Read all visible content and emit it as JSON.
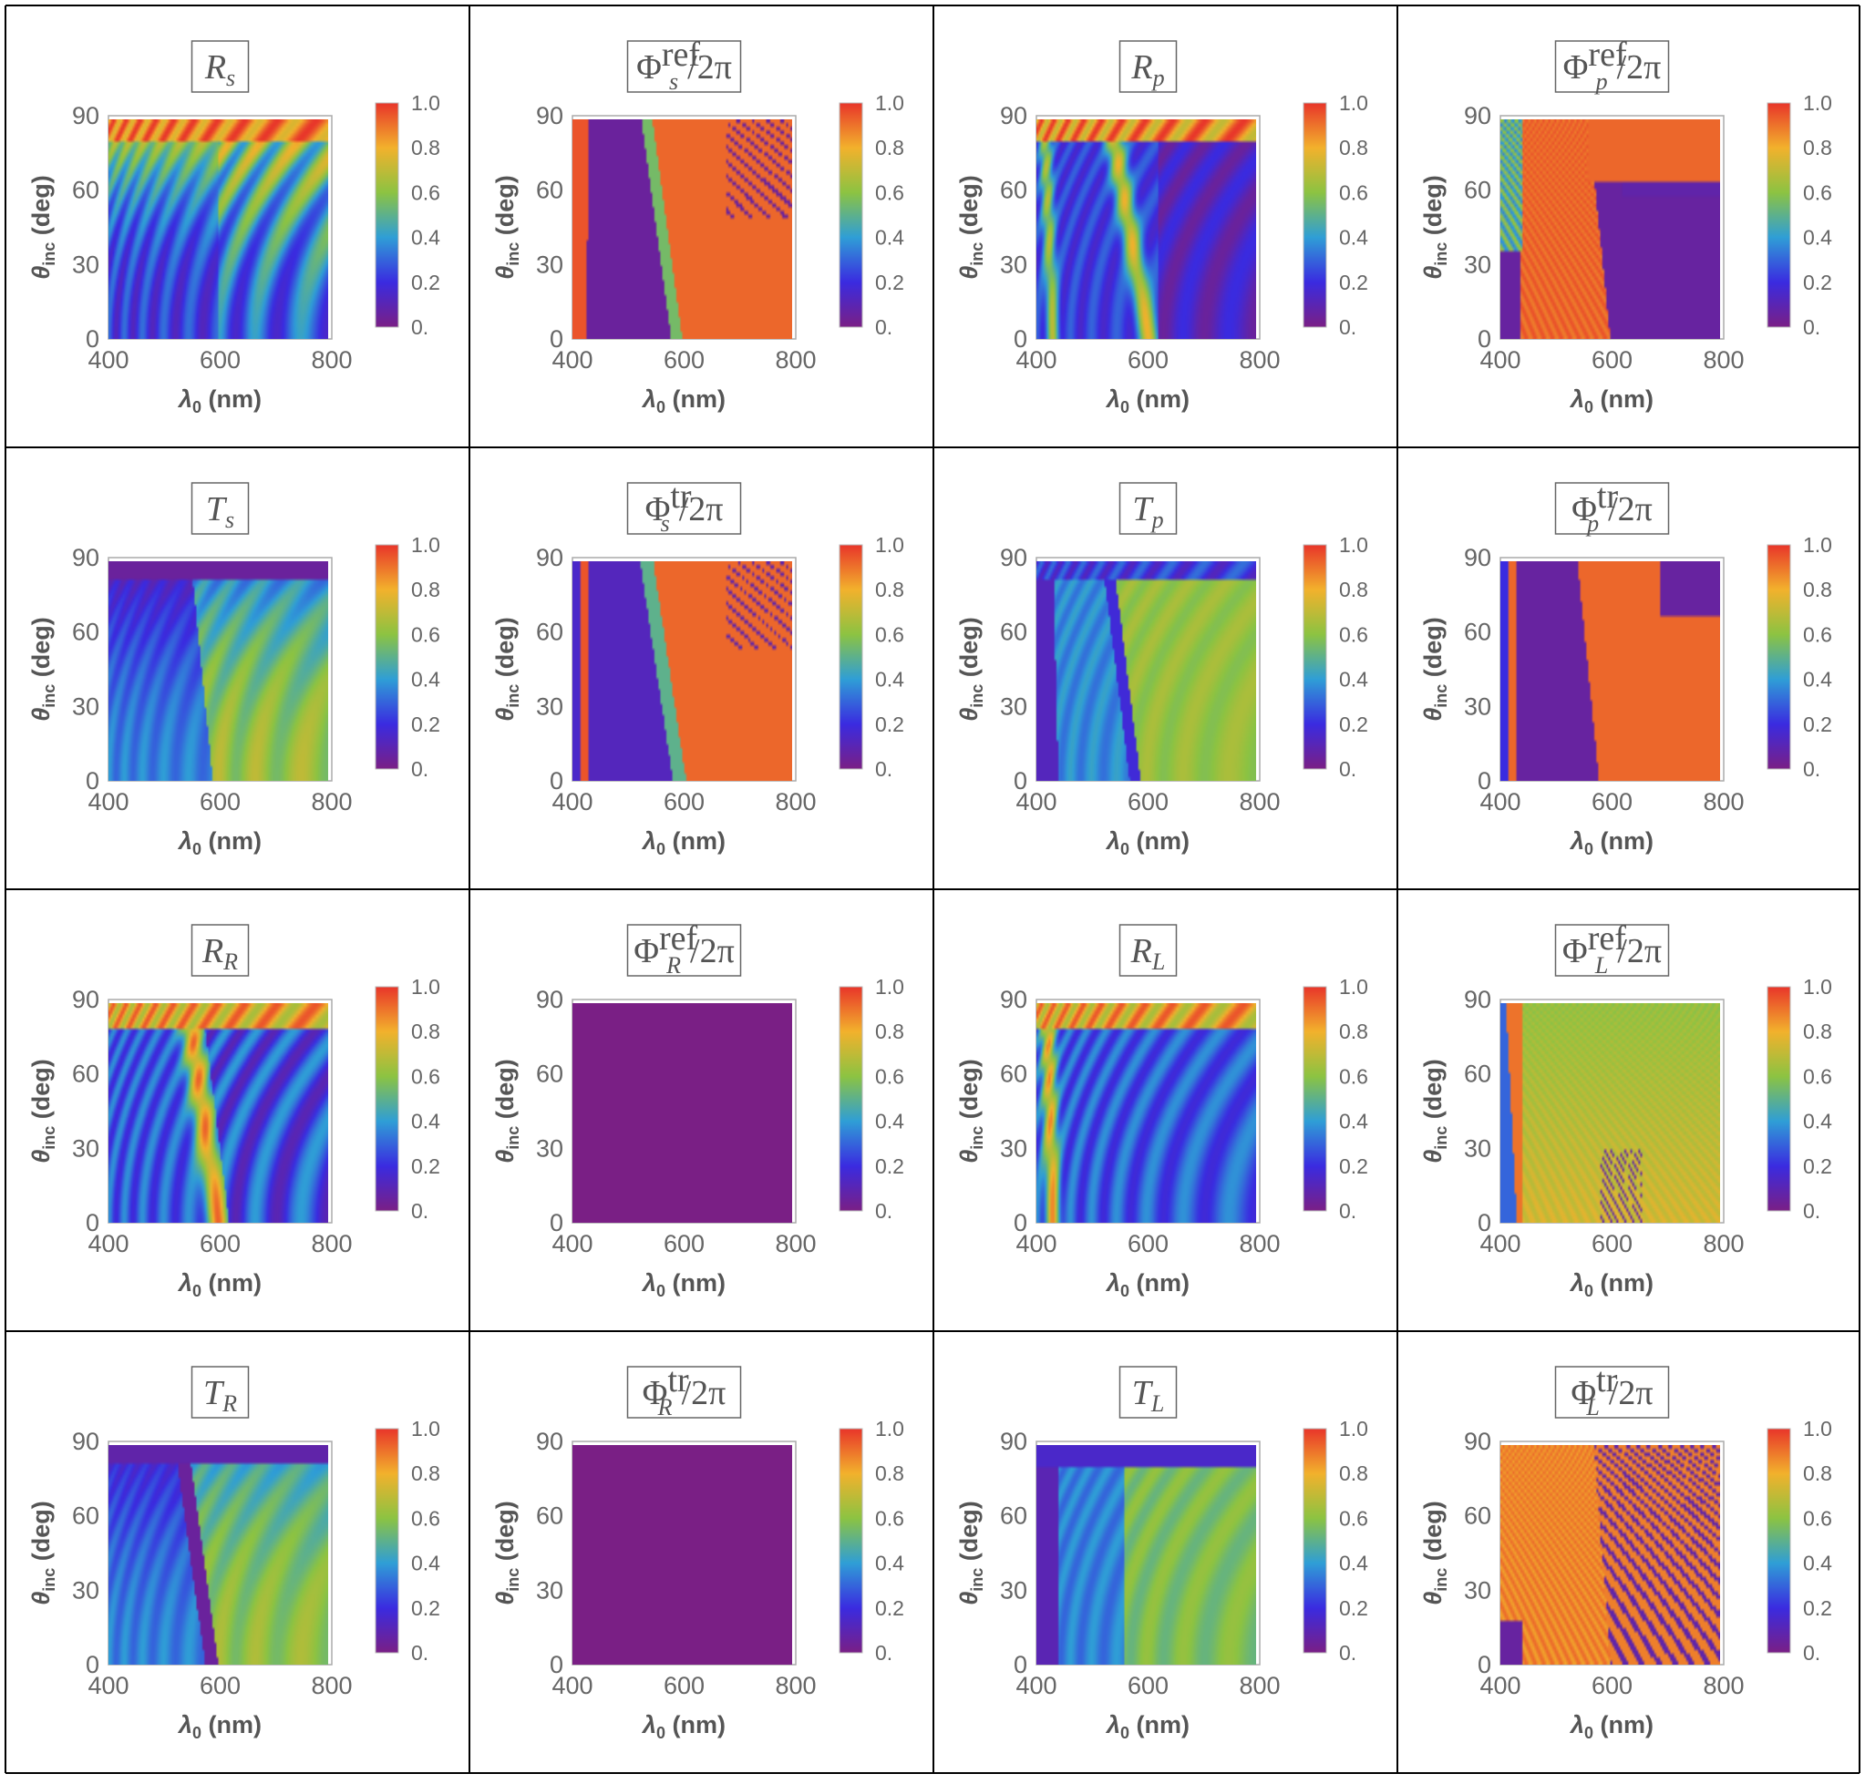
{
  "chart_data": [
    {
      "id": "Rs",
      "type": "heatmap",
      "title": {
        "main": "R",
        "sub": "s",
        "sup": "",
        "suffix": ""
      },
      "pattern": "R_s",
      "xlabel": {
        "main": "λ",
        "sub": "0",
        "rest": " (nm)"
      },
      "ylabel": {
        "main": "θ",
        "sub": "inc",
        "rest": " (deg)"
      },
      "xlim": [
        400,
        800
      ],
      "ylim": [
        0,
        90
      ],
      "xticks": [
        "400",
        "600",
        "800"
      ],
      "yticks": [
        "0",
        "30",
        "60",
        "90"
      ],
      "colorbar": {
        "range": [
          0,
          1
        ],
        "ticks": [
          "0.",
          "0.2",
          "0.4",
          "0.6",
          "0.8",
          "1.0"
        ]
      }
    },
    {
      "id": "PhiRefS",
      "type": "heatmap",
      "title": {
        "main": "Φ",
        "sub": "s",
        "sup": "ref",
        "suffix": "/2π"
      },
      "pattern": "phi_ref_s",
      "xlabel": {
        "main": "λ",
        "sub": "0",
        "rest": " (nm)"
      },
      "ylabel": {
        "main": "θ",
        "sub": "inc",
        "rest": " (deg)"
      },
      "xlim": [
        400,
        800
      ],
      "ylim": [
        0,
        90
      ],
      "xticks": [
        "400",
        "600",
        "800"
      ],
      "yticks": [
        "0",
        "30",
        "60",
        "90"
      ],
      "colorbar": {
        "range": [
          0,
          1
        ],
        "ticks": [
          "0.",
          "0.2",
          "0.4",
          "0.6",
          "0.8",
          "1.0"
        ]
      }
    },
    {
      "id": "Rp",
      "type": "heatmap",
      "title": {
        "main": "R",
        "sub": "p",
        "sup": "",
        "suffix": ""
      },
      "pattern": "R_p",
      "xlabel": {
        "main": "λ",
        "sub": "0",
        "rest": " (nm)"
      },
      "ylabel": {
        "main": "θ",
        "sub": "inc",
        "rest": " (deg)"
      },
      "xlim": [
        400,
        800
      ],
      "ylim": [
        0,
        90
      ],
      "xticks": [
        "400",
        "600",
        "800"
      ],
      "yticks": [
        "0",
        "30",
        "60",
        "90"
      ],
      "colorbar": {
        "range": [
          0,
          1
        ],
        "ticks": [
          "0.",
          "0.2",
          "0.4",
          "0.6",
          "0.8",
          "1.0"
        ]
      }
    },
    {
      "id": "PhiRefP",
      "type": "heatmap",
      "title": {
        "main": "Φ",
        "sub": "p",
        "sup": "ref",
        "suffix": "/2π"
      },
      "pattern": "phi_ref_p",
      "xlabel": {
        "main": "λ",
        "sub": "0",
        "rest": " (nm)"
      },
      "ylabel": {
        "main": "θ",
        "sub": "inc",
        "rest": " (deg)"
      },
      "xlim": [
        400,
        800
      ],
      "ylim": [
        0,
        90
      ],
      "xticks": [
        "400",
        "600",
        "800"
      ],
      "yticks": [
        "0",
        "30",
        "60",
        "90"
      ],
      "colorbar": {
        "range": [
          0,
          1
        ],
        "ticks": [
          "0.",
          "0.2",
          "0.4",
          "0.6",
          "0.8",
          "1.0"
        ]
      }
    },
    {
      "id": "Ts",
      "type": "heatmap",
      "title": {
        "main": "T",
        "sub": "s",
        "sup": "",
        "suffix": ""
      },
      "pattern": "T_s",
      "xlabel": {
        "main": "λ",
        "sub": "0",
        "rest": " (nm)"
      },
      "ylabel": {
        "main": "θ",
        "sub": "inc",
        "rest": " (deg)"
      },
      "xlim": [
        400,
        800
      ],
      "ylim": [
        0,
        90
      ],
      "xticks": [
        "400",
        "600",
        "800"
      ],
      "yticks": [
        "0",
        "30",
        "60",
        "90"
      ],
      "colorbar": {
        "range": [
          0,
          1
        ],
        "ticks": [
          "0.",
          "0.2",
          "0.4",
          "0.6",
          "0.8",
          "1.0"
        ]
      }
    },
    {
      "id": "PhiTrS",
      "type": "heatmap",
      "title": {
        "main": "Φ",
        "sub": "s",
        "sup": "tr",
        "suffix": "/2π"
      },
      "pattern": "phi_tr_s",
      "xlabel": {
        "main": "λ",
        "sub": "0",
        "rest": " (nm)"
      },
      "ylabel": {
        "main": "θ",
        "sub": "inc",
        "rest": " (deg)"
      },
      "xlim": [
        400,
        800
      ],
      "ylim": [
        0,
        90
      ],
      "xticks": [
        "400",
        "600",
        "800"
      ],
      "yticks": [
        "0",
        "30",
        "60",
        "90"
      ],
      "colorbar": {
        "range": [
          0,
          1
        ],
        "ticks": [
          "0.",
          "0.2",
          "0.4",
          "0.6",
          "0.8",
          "1.0"
        ]
      }
    },
    {
      "id": "Tp",
      "type": "heatmap",
      "title": {
        "main": "T",
        "sub": "p",
        "sup": "",
        "suffix": ""
      },
      "pattern": "T_p",
      "xlabel": {
        "main": "λ",
        "sub": "0",
        "rest": " (nm)"
      },
      "ylabel": {
        "main": "θ",
        "sub": "inc",
        "rest": " (deg)"
      },
      "xlim": [
        400,
        800
      ],
      "ylim": [
        0,
        90
      ],
      "xticks": [
        "400",
        "600",
        "800"
      ],
      "yticks": [
        "0",
        "30",
        "60",
        "90"
      ],
      "colorbar": {
        "range": [
          0,
          1
        ],
        "ticks": [
          "0.",
          "0.2",
          "0.4",
          "0.6",
          "0.8",
          "1.0"
        ]
      }
    },
    {
      "id": "PhiTrP",
      "type": "heatmap",
      "title": {
        "main": "Φ",
        "sub": "p",
        "sup": "tr",
        "suffix": "/2π"
      },
      "pattern": "phi_tr_p",
      "xlabel": {
        "main": "λ",
        "sub": "0",
        "rest": " (nm)"
      },
      "ylabel": {
        "main": "θ",
        "sub": "inc",
        "rest": " (deg)"
      },
      "xlim": [
        400,
        800
      ],
      "ylim": [
        0,
        90
      ],
      "xticks": [
        "400",
        "600",
        "800"
      ],
      "yticks": [
        "0",
        "30",
        "60",
        "90"
      ],
      "colorbar": {
        "range": [
          0,
          1
        ],
        "ticks": [
          "0.",
          "0.2",
          "0.4",
          "0.6",
          "0.8",
          "1.0"
        ]
      }
    },
    {
      "id": "RR",
      "type": "heatmap",
      "title": {
        "main": "R",
        "sub": "R",
        "sup": "",
        "suffix": ""
      },
      "pattern": "R_R",
      "xlabel": {
        "main": "λ",
        "sub": "0",
        "rest": " (nm)"
      },
      "ylabel": {
        "main": "θ",
        "sub": "inc",
        "rest": " (deg)"
      },
      "xlim": [
        400,
        800
      ],
      "ylim": [
        0,
        90
      ],
      "xticks": [
        "400",
        "600",
        "800"
      ],
      "yticks": [
        "0",
        "30",
        "60",
        "90"
      ],
      "colorbar": {
        "range": [
          0,
          1
        ],
        "ticks": [
          "0.",
          "0.2",
          "0.4",
          "0.6",
          "0.8",
          "1.0"
        ]
      }
    },
    {
      "id": "PhiRefR",
      "type": "heatmap",
      "title": {
        "main": "Φ",
        "sub": "R",
        "sup": "ref",
        "suffix": "/2π"
      },
      "pattern": "uniform_zero",
      "xlabel": {
        "main": "λ",
        "sub": "0",
        "rest": " (nm)"
      },
      "ylabel": {
        "main": "θ",
        "sub": "inc",
        "rest": " (deg)"
      },
      "xlim": [
        400,
        800
      ],
      "ylim": [
        0,
        90
      ],
      "xticks": [
        "400",
        "600",
        "800"
      ],
      "yticks": [
        "0",
        "30",
        "60",
        "90"
      ],
      "colorbar": {
        "range": [
          0,
          1
        ],
        "ticks": [
          "0.",
          "0.2",
          "0.4",
          "0.6",
          "0.8",
          "1.0"
        ]
      }
    },
    {
      "id": "RL",
      "type": "heatmap",
      "title": {
        "main": "R",
        "sub": "L",
        "sup": "",
        "suffix": ""
      },
      "pattern": "R_L",
      "xlabel": {
        "main": "λ",
        "sub": "0",
        "rest": " (nm)"
      },
      "ylabel": {
        "main": "θ",
        "sub": "inc",
        "rest": " (deg)"
      },
      "xlim": [
        400,
        800
      ],
      "ylim": [
        0,
        90
      ],
      "xticks": [
        "400",
        "600",
        "800"
      ],
      "yticks": [
        "0",
        "30",
        "60",
        "90"
      ],
      "colorbar": {
        "range": [
          0,
          1
        ],
        "ticks": [
          "0.",
          "0.2",
          "0.4",
          "0.6",
          "0.8",
          "1.0"
        ]
      }
    },
    {
      "id": "PhiRefL",
      "type": "heatmap",
      "title": {
        "main": "Φ",
        "sub": "L",
        "sup": "ref",
        "suffix": "/2π"
      },
      "pattern": "phi_ref_L",
      "xlabel": {
        "main": "λ",
        "sub": "0",
        "rest": " (nm)"
      },
      "ylabel": {
        "main": "θ",
        "sub": "inc",
        "rest": " (deg)"
      },
      "xlim": [
        400,
        800
      ],
      "ylim": [
        0,
        90
      ],
      "xticks": [
        "400",
        "600",
        "800"
      ],
      "yticks": [
        "0",
        "30",
        "60",
        "90"
      ],
      "colorbar": {
        "range": [
          0,
          1
        ],
        "ticks": [
          "0.",
          "0.2",
          "0.4",
          "0.6",
          "0.8",
          "1.0"
        ]
      }
    },
    {
      "id": "TR",
      "type": "heatmap",
      "title": {
        "main": "T",
        "sub": "R",
        "sup": "",
        "suffix": ""
      },
      "pattern": "T_R",
      "xlabel": {
        "main": "λ",
        "sub": "0",
        "rest": " (nm)"
      },
      "ylabel": {
        "main": "θ",
        "sub": "inc",
        "rest": " (deg)"
      },
      "xlim": [
        400,
        800
      ],
      "ylim": [
        0,
        90
      ],
      "xticks": [
        "400",
        "600",
        "800"
      ],
      "yticks": [
        "0",
        "30",
        "60",
        "90"
      ],
      "colorbar": {
        "range": [
          0,
          1
        ],
        "ticks": [
          "0.",
          "0.2",
          "0.4",
          "0.6",
          "0.8",
          "1.0"
        ]
      }
    },
    {
      "id": "PhiTrR",
      "type": "heatmap",
      "title": {
        "main": "Φ",
        "sub": "R",
        "sup": "tr",
        "suffix": "/2π"
      },
      "pattern": "uniform_zero",
      "xlabel": {
        "main": "λ",
        "sub": "0",
        "rest": " (nm)"
      },
      "ylabel": {
        "main": "θ",
        "sub": "inc",
        "rest": " (deg)"
      },
      "xlim": [
        400,
        800
      ],
      "ylim": [
        0,
        90
      ],
      "xticks": [
        "400",
        "600",
        "800"
      ],
      "yticks": [
        "0",
        "30",
        "60",
        "90"
      ],
      "colorbar": {
        "range": [
          0,
          1
        ],
        "ticks": [
          "0.",
          "0.2",
          "0.4",
          "0.6",
          "0.8",
          "1.0"
        ]
      }
    },
    {
      "id": "TL",
      "type": "heatmap",
      "title": {
        "main": "T",
        "sub": "L",
        "sup": "",
        "suffix": ""
      },
      "pattern": "T_L",
      "xlabel": {
        "main": "λ",
        "sub": "0",
        "rest": " (nm)"
      },
      "ylabel": {
        "main": "θ",
        "sub": "inc",
        "rest": " (deg)"
      },
      "xlim": [
        400,
        800
      ],
      "ylim": [
        0,
        90
      ],
      "xticks": [
        "400",
        "600",
        "800"
      ],
      "yticks": [
        "0",
        "30",
        "60",
        "90"
      ],
      "colorbar": {
        "range": [
          0,
          1
        ],
        "ticks": [
          "0.",
          "0.2",
          "0.4",
          "0.6",
          "0.8",
          "1.0"
        ]
      }
    },
    {
      "id": "PhiTrL",
      "type": "heatmap",
      "title": {
        "main": "Φ",
        "sub": "L",
        "sup": "tr",
        "suffix": "/2π"
      },
      "pattern": "phi_tr_L",
      "xlabel": {
        "main": "λ",
        "sub": "0",
        "rest": " (nm)"
      },
      "ylabel": {
        "main": "θ",
        "sub": "inc",
        "rest": " (deg)"
      },
      "xlim": [
        400,
        800
      ],
      "ylim": [
        0,
        90
      ],
      "xticks": [
        "400",
        "600",
        "800"
      ],
      "yticks": [
        "0",
        "30",
        "60",
        "90"
      ],
      "colorbar": {
        "range": [
          0,
          1
        ],
        "ticks": [
          "0.",
          "0.2",
          "0.4",
          "0.6",
          "0.8",
          "1.0"
        ]
      }
    }
  ],
  "colormap": {
    "name": "rainbow",
    "stops": [
      "#7a1f85",
      "#3a2be0",
      "#2f9ed6",
      "#8cc342",
      "#f2b12c",
      "#e8352a"
    ]
  }
}
